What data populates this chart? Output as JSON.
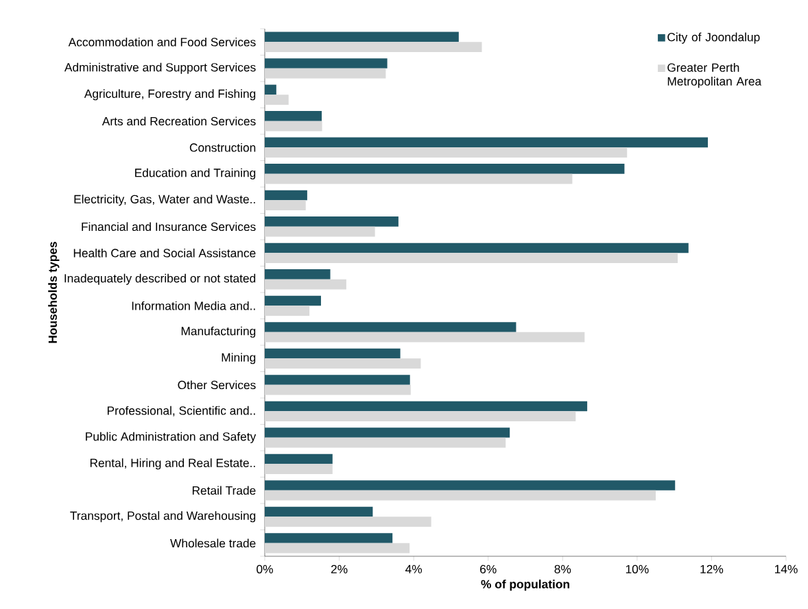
{
  "chart_data": {
    "type": "bar",
    "orientation": "horizontal",
    "xlabel": "% of population",
    "ylabel": "Households types",
    "categories": [
      "Accommodation and Food Services",
      "Administrative and Support Services",
      "Agriculture, Forestry and Fishing",
      "Arts and Recreation Services",
      "Construction",
      "Education and Training",
      "Electricity, Gas, Water and Waste..",
      "Financial and Insurance Services",
      "Health Care and Social Assistance",
      "Inadequately described or not stated",
      "Information Media and..",
      "Manufacturing",
      "Mining",
      "Other Services",
      "Professional, Scientific and..",
      "Public Administration and Safety",
      "Rental, Hiring and Real Estate..",
      "Retail Trade",
      "Transport, Postal and Warehousing",
      "Wholesale trade"
    ],
    "series": [
      {
        "name": "City of Joondalup",
        "color": "#215968",
        "values": [
          5.21,
          3.29,
          0.31,
          1.53,
          11.9,
          9.66,
          1.14,
          3.59,
          11.38,
          1.76,
          1.51,
          6.75,
          3.64,
          3.9,
          8.66,
          6.58,
          1.82,
          11.02,
          2.9,
          3.43
        ]
      },
      {
        "name": "Greater Perth Metropolitan Area",
        "color": "#d9d9d9",
        "values": [
          5.83,
          3.25,
          0.64,
          1.54,
          9.73,
          8.26,
          1.1,
          2.96,
          11.09,
          2.19,
          1.2,
          8.59,
          4.19,
          3.92,
          8.35,
          6.47,
          1.82,
          10.5,
          4.47,
          3.89
        ]
      }
    ],
    "xlim": [
      0,
      14
    ],
    "xticks": [
      {
        "value": 0,
        "label": "0%"
      },
      {
        "value": 2,
        "label": "2%"
      },
      {
        "value": 4,
        "label": "4%"
      },
      {
        "value": 6,
        "label": "6%"
      },
      {
        "value": 8,
        "label": "8%"
      },
      {
        "value": 10,
        "label": "10%"
      },
      {
        "value": 12,
        "label": "12%"
      },
      {
        "value": 14,
        "label": "14%"
      }
    ],
    "legend": "top right",
    "grid": false
  }
}
